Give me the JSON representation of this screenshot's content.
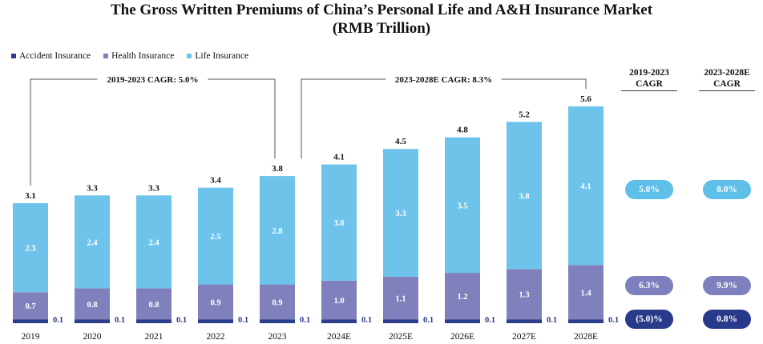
{
  "colors": {
    "accident": "#2b3d8c",
    "health": "#8080bd",
    "life": "#6ec3ea",
    "pill_life": "#5ebfe8",
    "pill_health": "#7e7fbd",
    "pill_accident": "#2a3a8a"
  },
  "chart_data": {
    "type": "bar",
    "stacked": true,
    "title": "The Gross Written Premiums of China’s Personal Life and A&H Insurance Market",
    "subtitle": "(RMB Trillion)",
    "categories": [
      "2019",
      "2020",
      "2021",
      "2022",
      "2023",
      "2024E",
      "2025E",
      "2026E",
      "2027E",
      "2028E"
    ],
    "series": [
      {
        "name": "Accident Insurance",
        "values": [
          0.1,
          0.1,
          0.1,
          0.1,
          0.1,
          0.1,
          0.1,
          0.1,
          0.1,
          0.1
        ]
      },
      {
        "name": "Health Insurance",
        "values": [
          0.7,
          0.8,
          0.8,
          0.9,
          0.9,
          1.0,
          1.1,
          1.2,
          1.3,
          1.4
        ]
      },
      {
        "name": "Life Insurance",
        "values": [
          2.3,
          2.4,
          2.4,
          2.5,
          2.8,
          3.0,
          3.3,
          3.5,
          3.8,
          4.1
        ]
      }
    ],
    "totals": [
      3.1,
      3.3,
      3.3,
      3.4,
      3.8,
      4.1,
      4.5,
      4.8,
      5.2,
      5.6
    ],
    "ylim": [
      0,
      6.0
    ],
    "legend_position": "top-left",
    "annotations": [
      {
        "text": "2019-2023 CAGR: 5.0%",
        "from": "2019",
        "to": "2023"
      },
      {
        "text": "2023-2028E CAGR: 8.3%",
        "from": "2023",
        "to": "2028E"
      }
    ]
  },
  "cagr_table": {
    "headers": [
      {
        "line1": "2019-2023",
        "line2": "CAGR"
      },
      {
        "line1": "2023-2028E",
        "line2": "CAGR"
      }
    ],
    "rows": [
      {
        "series": "Life Insurance",
        "values": [
          "5.0%",
          "8.0%"
        ]
      },
      {
        "series": "Health Insurance",
        "values": [
          "6.3%",
          "9.9%"
        ]
      },
      {
        "series": "Accident Insurance",
        "values": [
          "(5.0)%",
          "0.8%"
        ]
      }
    ]
  }
}
